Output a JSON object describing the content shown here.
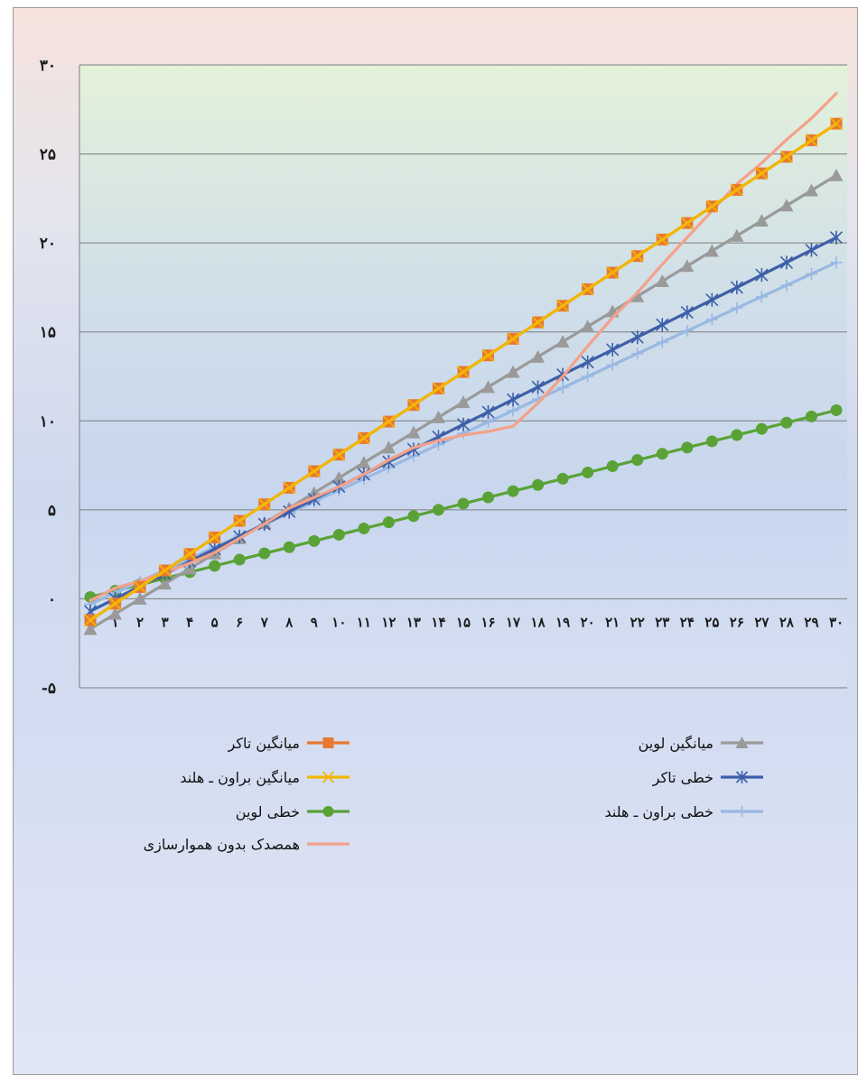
{
  "chart_data": {
    "type": "line",
    "title": "",
    "xlabel": "",
    "ylabel": "",
    "ylim": [
      -5,
      30
    ],
    "y_ticks": [
      "-۵",
      "۰",
      "۵",
      "۱۰",
      "۱۵",
      "۲۰",
      "۲۵",
      "۳۰"
    ],
    "y_tick_values": [
      -5,
      0,
      5,
      10,
      15,
      20,
      25,
      30
    ],
    "x": [
      0,
      1,
      2,
      3,
      4,
      5,
      6,
      7,
      8,
      9,
      10,
      11,
      12,
      13,
      14,
      15,
      16,
      17,
      18,
      19,
      20,
      21,
      22,
      23,
      24,
      25,
      26,
      27,
      28,
      29,
      30
    ],
    "x_tick_labels": [
      "۰",
      "۱",
      "۲",
      "۳",
      "۴",
      "۵",
      "۶",
      "۷",
      "۸",
      "۹",
      "۱۰",
      "۱۱",
      "۱۲",
      "۱۳",
      "۱۴",
      "۱۵",
      "۱۶",
      "۱۷",
      "۱۸",
      "۱۹",
      "۲۰",
      "۲۱",
      "۲۲",
      "۲۳",
      "۲۴",
      "۲۵",
      "۲۶",
      "۲۷",
      "۲۸",
      "۲۹",
      "۳۰"
    ],
    "grid": true,
    "legend_position": "bottom",
    "series": [
      {
        "name": "میانگین تاکر",
        "color": "#e8782f",
        "marker": "square",
        "values": [
          -1.2,
          -0.27,
          0.66,
          1.59,
          2.52,
          3.45,
          4.38,
          5.31,
          6.24,
          7.17,
          8.1,
          9.03,
          9.96,
          10.89,
          11.82,
          12.75,
          13.68,
          14.61,
          15.54,
          16.47,
          17.4,
          18.33,
          19.26,
          20.19,
          21.12,
          22.05,
          22.98,
          23.91,
          24.84,
          25.77,
          26.7
        ]
      },
      {
        "name": "میانگین لوین",
        "color": "#9a9a9a",
        "marker": "triangle",
        "values": [
          -1.7,
          -0.85,
          0.0,
          0.85,
          1.7,
          2.55,
          3.4,
          4.25,
          5.1,
          5.95,
          6.8,
          7.65,
          8.5,
          9.35,
          10.2,
          11.05,
          11.9,
          12.75,
          13.6,
          14.45,
          15.3,
          16.15,
          17.0,
          17.85,
          18.7,
          19.55,
          20.4,
          21.25,
          22.1,
          22.95,
          23.8
        ]
      },
      {
        "name": "میانگین براون ـ هلند",
        "color": "#f2b705",
        "marker": "x",
        "values": [
          -1.2,
          -0.27,
          0.66,
          1.59,
          2.52,
          3.45,
          4.38,
          5.31,
          6.24,
          7.17,
          8.1,
          9.03,
          9.96,
          10.89,
          11.82,
          12.75,
          13.68,
          14.61,
          15.54,
          16.47,
          17.4,
          18.33,
          19.26,
          20.19,
          21.12,
          22.05,
          22.98,
          23.91,
          24.84,
          25.77,
          26.7
        ]
      },
      {
        "name": "خطی تاکر",
        "color": "#3d5fa8",
        "marker": "star",
        "values": [
          -0.7,
          0.0,
          0.7,
          1.4,
          2.1,
          2.8,
          3.5,
          4.2,
          4.9,
          5.6,
          6.3,
          7.0,
          7.7,
          8.4,
          9.1,
          9.8,
          10.5,
          11.2,
          11.9,
          12.6,
          13.3,
          14.0,
          14.7,
          15.4,
          16.1,
          16.8,
          17.5,
          18.2,
          18.9,
          19.6,
          20.3
        ]
      },
      {
        "name": "خطی لوین",
        "color": "#5aa236",
        "marker": "circle",
        "values": [
          0.1,
          0.45,
          0.8,
          1.15,
          1.5,
          1.85,
          2.2,
          2.55,
          2.9,
          3.25,
          3.6,
          3.95,
          4.3,
          4.65,
          5.0,
          5.35,
          5.7,
          6.05,
          6.4,
          6.75,
          7.1,
          7.45,
          7.8,
          8.15,
          8.5,
          8.85,
          9.2,
          9.55,
          9.9,
          10.25,
          10.6
        ]
      },
      {
        "name": "خطی براون ـ هلند",
        "color": "#99b8e2",
        "marker": "plus",
        "values": [
          -0.3,
          0.34,
          0.98,
          1.62,
          2.26,
          2.9,
          3.54,
          4.18,
          4.82,
          5.46,
          6.1,
          6.74,
          7.38,
          8.02,
          8.66,
          9.3,
          9.94,
          10.58,
          11.22,
          11.86,
          12.5,
          13.14,
          13.78,
          14.42,
          15.06,
          15.7,
          16.34,
          16.98,
          17.62,
          18.26,
          18.9
        ]
      },
      {
        "name": "همصدک بدون هموارسازی",
        "color": "#f4a18a",
        "marker": "none",
        "values": [
          -0.1,
          0.6,
          1.0,
          1.5,
          2.0,
          2.6,
          3.4,
          4.2,
          5.1,
          5.7,
          6.3,
          7.0,
          7.8,
          8.5,
          8.9,
          9.2,
          9.4,
          9.7,
          11.0,
          12.5,
          14.2,
          15.8,
          17.2,
          18.8,
          20.3,
          21.8,
          23.3,
          24.5,
          25.8,
          27.0,
          28.4
        ]
      }
    ]
  },
  "legend": {
    "items": [
      {
        "label": "میانگین تاکر",
        "color": "#e8782f",
        "marker": "square"
      },
      {
        "label": "میانگین لوین",
        "color": "#9a9a9a",
        "marker": "triangle"
      },
      {
        "label": "میانگین براون ـ هلند",
        "color": "#f2b705",
        "marker": "x"
      },
      {
        "label": "خطی تاکر",
        "color": "#3d5fa8",
        "marker": "star"
      },
      {
        "label": "خطی لوین",
        "color": "#5aa236",
        "marker": "circle"
      },
      {
        "label": "خطی براون ـ هلند",
        "color": "#99b8e2",
        "marker": "plus"
      },
      {
        "label": "همصدک بدون هموارسازی",
        "color": "#f4a18a",
        "marker": "none"
      }
    ]
  }
}
